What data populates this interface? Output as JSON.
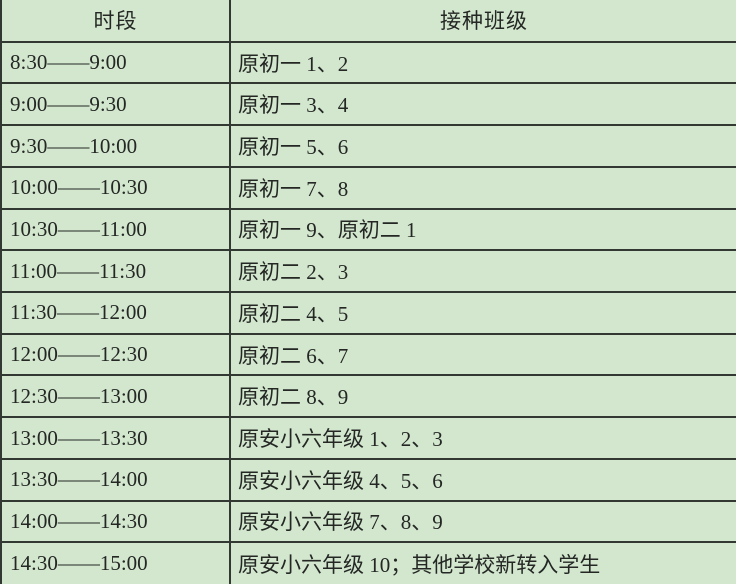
{
  "colors": {
    "background": "#d2e7ce",
    "border": "#323832",
    "text": "#242724"
  },
  "table": {
    "headers": {
      "time": "时段",
      "classes": "接种班级"
    },
    "rows": [
      {
        "time": "8:30——9:00",
        "classes": "原初一 1、2"
      },
      {
        "time": "9:00——9:30",
        "classes": "原初一 3、4"
      },
      {
        "time": "9:30——10:00",
        "classes": "原初一 5、6"
      },
      {
        "time": "10:00——10:30",
        "classes": "原初一 7、8"
      },
      {
        "time": "10:30——11:00",
        "classes": "原初一 9、原初二 1"
      },
      {
        "time": "11:00——11:30",
        "classes": "原初二 2、3"
      },
      {
        "time": "11:30——12:00",
        "classes": "原初二 4、5"
      },
      {
        "time": "12:00——12:30",
        "classes": "原初二 6、7"
      },
      {
        "time": "12:30——13:00",
        "classes": "原初二 8、9"
      },
      {
        "time": "13:00——13:30",
        "classes": "原安小六年级 1、2、3"
      },
      {
        "time": "13:30——14:00",
        "classes": "原安小六年级 4、5、6"
      },
      {
        "time": "14:00——14:30",
        "classes": "原安小六年级 7、8、9"
      },
      {
        "time": "14:30——15:00",
        "classes": "原安小六年级 10；其他学校新转入学生"
      }
    ]
  }
}
